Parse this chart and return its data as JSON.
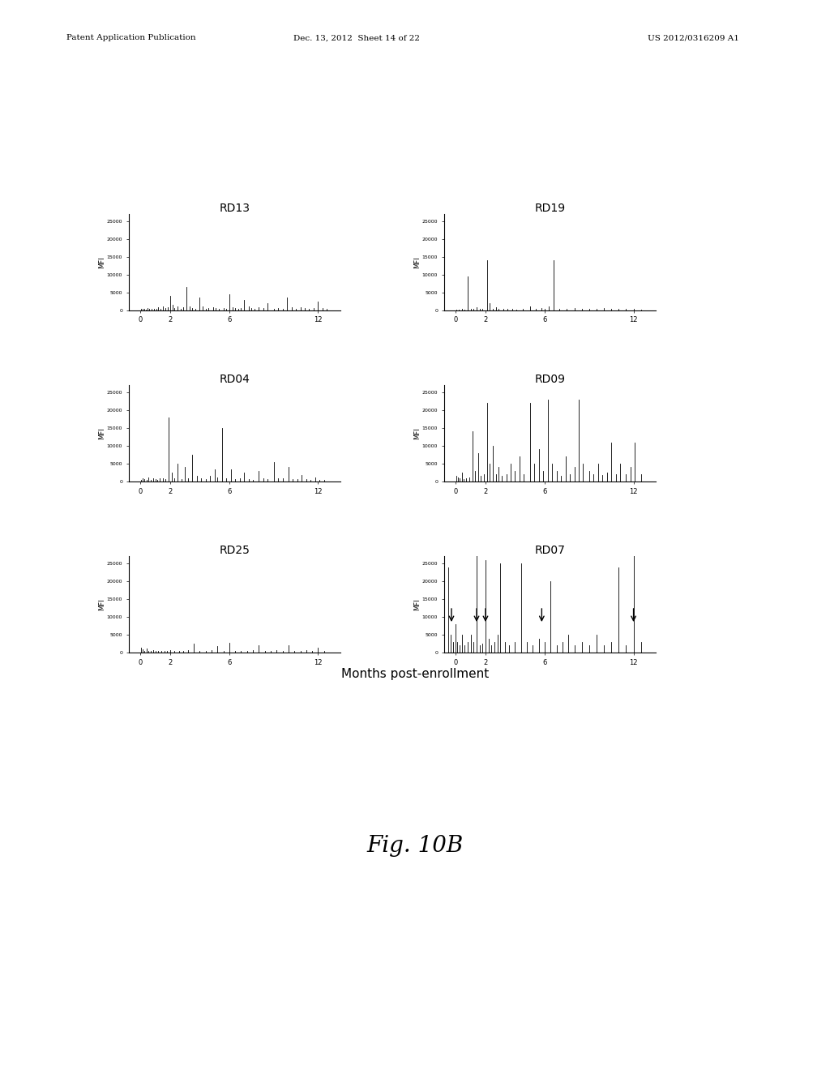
{
  "xlabel": "Months post-enrollment",
  "ylabel": "MFI",
  "ylim": [
    0,
    27000
  ],
  "yticks": [
    0,
    5000,
    10000,
    15000,
    20000,
    25000
  ],
  "ytick_labels": [
    "0",
    "5000",
    "10000",
    "15000",
    "20000",
    "25000"
  ],
  "xticks": [
    0,
    2,
    6,
    12
  ],
  "xlim": [
    -0.8,
    13.5
  ],
  "bar_color": "#000000",
  "background_color": "#ffffff",
  "fig_title_text": "Fig. 10B",
  "header_left": "Patent Application Publication",
  "header_mid": "Dec. 13, 2012  Sheet 14 of 22",
  "header_right": "US 2012/0316209 A1",
  "RD13_data": {
    "x": [
      0.05,
      0.15,
      0.25,
      0.35,
      0.45,
      0.6,
      0.75,
      0.9,
      1.05,
      1.2,
      1.35,
      1.5,
      1.7,
      1.85,
      2.0,
      2.15,
      2.3,
      2.5,
      2.7,
      2.9,
      3.1,
      3.3,
      3.5,
      3.7,
      4.0,
      4.2,
      4.4,
      4.6,
      4.9,
      5.1,
      5.3,
      5.6,
      5.8,
      6.0,
      6.2,
      6.4,
      6.6,
      6.8,
      7.0,
      7.3,
      7.5,
      7.7,
      8.0,
      8.3,
      8.6,
      9.0,
      9.3,
      9.6,
      9.9,
      10.2,
      10.5,
      10.8,
      11.1,
      11.4,
      11.7,
      12.0,
      12.3,
      12.6
    ],
    "y": [
      300,
      500,
      400,
      200,
      600,
      300,
      500,
      400,
      300,
      800,
      500,
      1200,
      600,
      800,
      4000,
      1500,
      600,
      1200,
      500,
      800,
      6500,
      1000,
      700,
      500,
      3500,
      1200,
      500,
      700,
      800,
      600,
      400,
      700,
      500,
      4500,
      800,
      600,
      500,
      700,
      3000,
      1000,
      600,
      500,
      800,
      600,
      2000,
      500,
      700,
      400,
      3500,
      900,
      500,
      800,
      600,
      400,
      700,
      2500,
      600,
      500
    ]
  },
  "RD19_data": {
    "x": [
      0.05,
      0.2,
      0.4,
      0.6,
      0.8,
      1.0,
      1.2,
      1.4,
      1.6,
      1.8,
      2.1,
      2.3,
      2.5,
      2.7,
      2.9,
      3.2,
      3.5,
      3.8,
      4.1,
      4.5,
      5.0,
      5.4,
      5.8,
      6.0,
      6.3,
      6.6,
      7.0,
      7.5,
      8.0,
      8.5,
      9.0,
      9.5,
      10.0,
      10.5,
      11.0,
      11.5,
      12.0,
      12.5
    ],
    "y": [
      200,
      100,
      300,
      200,
      9500,
      400,
      300,
      800,
      500,
      400,
      14000,
      2000,
      500,
      800,
      400,
      300,
      500,
      400,
      200,
      300,
      1000,
      400,
      600,
      500,
      1200,
      14000,
      500,
      400,
      600,
      300,
      500,
      400,
      600,
      300,
      500,
      400,
      300,
      200
    ]
  },
  "RD04_data": {
    "x": [
      0.05,
      0.15,
      0.25,
      0.4,
      0.55,
      0.7,
      0.85,
      1.0,
      1.15,
      1.3,
      1.5,
      1.7,
      1.9,
      2.1,
      2.3,
      2.5,
      2.8,
      3.0,
      3.2,
      3.5,
      3.8,
      4.1,
      4.4,
      4.7,
      5.0,
      5.2,
      5.5,
      5.8,
      6.1,
      6.4,
      6.7,
      7.0,
      7.3,
      7.6,
      8.0,
      8.3,
      8.6,
      9.0,
      9.3,
      9.6,
      10.0,
      10.3,
      10.6,
      10.9,
      11.2,
      11.5,
      11.8,
      12.1,
      12.4
    ],
    "y": [
      400,
      800,
      600,
      400,
      1200,
      500,
      800,
      600,
      400,
      1000,
      800,
      600,
      18000,
      2500,
      800,
      5000,
      600,
      4000,
      800,
      7500,
      1500,
      800,
      600,
      1500,
      3500,
      1200,
      15000,
      800,
      3500,
      600,
      800,
      2500,
      700,
      500,
      3000,
      800,
      600,
      5500,
      1000,
      800,
      4000,
      700,
      600,
      1800,
      600,
      400,
      1200,
      500,
      400
    ]
  },
  "RD09_data": {
    "x": [
      0.05,
      0.15,
      0.25,
      0.4,
      0.55,
      0.7,
      0.9,
      1.1,
      1.3,
      1.5,
      1.7,
      1.9,
      2.1,
      2.3,
      2.5,
      2.7,
      2.9,
      3.1,
      3.4,
      3.7,
      4.0,
      4.3,
      4.6,
      5.0,
      5.3,
      5.6,
      5.9,
      6.2,
      6.5,
      6.8,
      7.1,
      7.4,
      7.7,
      8.0,
      8.3,
      8.6,
      9.0,
      9.3,
      9.6,
      9.9,
      10.2,
      10.5,
      10.8,
      11.1,
      11.5,
      11.8,
      12.1,
      12.5
    ],
    "y": [
      1500,
      1200,
      800,
      2500,
      600,
      1000,
      1200,
      14000,
      3000,
      8000,
      1500,
      2000,
      22000,
      5000,
      10000,
      2000,
      4000,
      1500,
      2000,
      5000,
      3000,
      7000,
      2000,
      22000,
      5000,
      9000,
      3000,
      23000,
      5000,
      3000,
      1500,
      7000,
      2000,
      4000,
      23000,
      5000,
      3000,
      2000,
      5000,
      1800,
      2500,
      11000,
      2000,
      5000,
      2000,
      4000,
      11000,
      2000
    ]
  },
  "RD25_data": {
    "x": [
      0.05,
      0.15,
      0.25,
      0.4,
      0.55,
      0.7,
      0.85,
      1.0,
      1.2,
      1.4,
      1.6,
      1.8,
      2.0,
      2.3,
      2.6,
      2.9,
      3.2,
      3.6,
      4.0,
      4.4,
      4.8,
      5.2,
      5.6,
      6.0,
      6.4,
      6.8,
      7.2,
      7.6,
      8.0,
      8.4,
      8.8,
      9.2,
      9.6,
      10.0,
      10.4,
      10.8,
      11.2,
      11.6,
      12.0,
      12.4
    ],
    "y": [
      1500,
      900,
      600,
      1200,
      600,
      400,
      800,
      600,
      400,
      600,
      400,
      500,
      700,
      600,
      400,
      500,
      700,
      2500,
      600,
      400,
      700,
      1800,
      600,
      2800,
      500,
      400,
      600,
      800,
      2000,
      600,
      400,
      700,
      500,
      2200,
      600,
      400,
      800,
      500,
      1500,
      400
    ]
  },
  "RD07_data": {
    "x": [
      -0.5,
      -0.35,
      -0.2,
      -0.05,
      0.1,
      0.25,
      0.4,
      0.6,
      0.8,
      1.0,
      1.2,
      1.4,
      1.6,
      1.8,
      2.0,
      2.2,
      2.4,
      2.6,
      2.8,
      3.0,
      3.3,
      3.6,
      4.0,
      4.4,
      4.8,
      5.2,
      5.6,
      6.0,
      6.4,
      6.8,
      7.2,
      7.6,
      8.0,
      8.5,
      9.0,
      9.5,
      10.0,
      10.5,
      11.0,
      11.5,
      12.0,
      12.5
    ],
    "y": [
      24000,
      5000,
      3000,
      8000,
      3000,
      2000,
      5000,
      2000,
      3000,
      5000,
      3000,
      28000,
      2000,
      2500,
      26000,
      4000,
      2000,
      3000,
      5000,
      25000,
      3000,
      2000,
      3000,
      25000,
      3000,
      2000,
      4000,
      3000,
      20000,
      2000,
      3000,
      5000,
      2000,
      3000,
      2000,
      5000,
      2000,
      3000,
      24000,
      2000,
      28000,
      3000
    ]
  },
  "RD07_arrows": [
    -0.3,
    1.4,
    2.0,
    5.8,
    12.0
  ]
}
